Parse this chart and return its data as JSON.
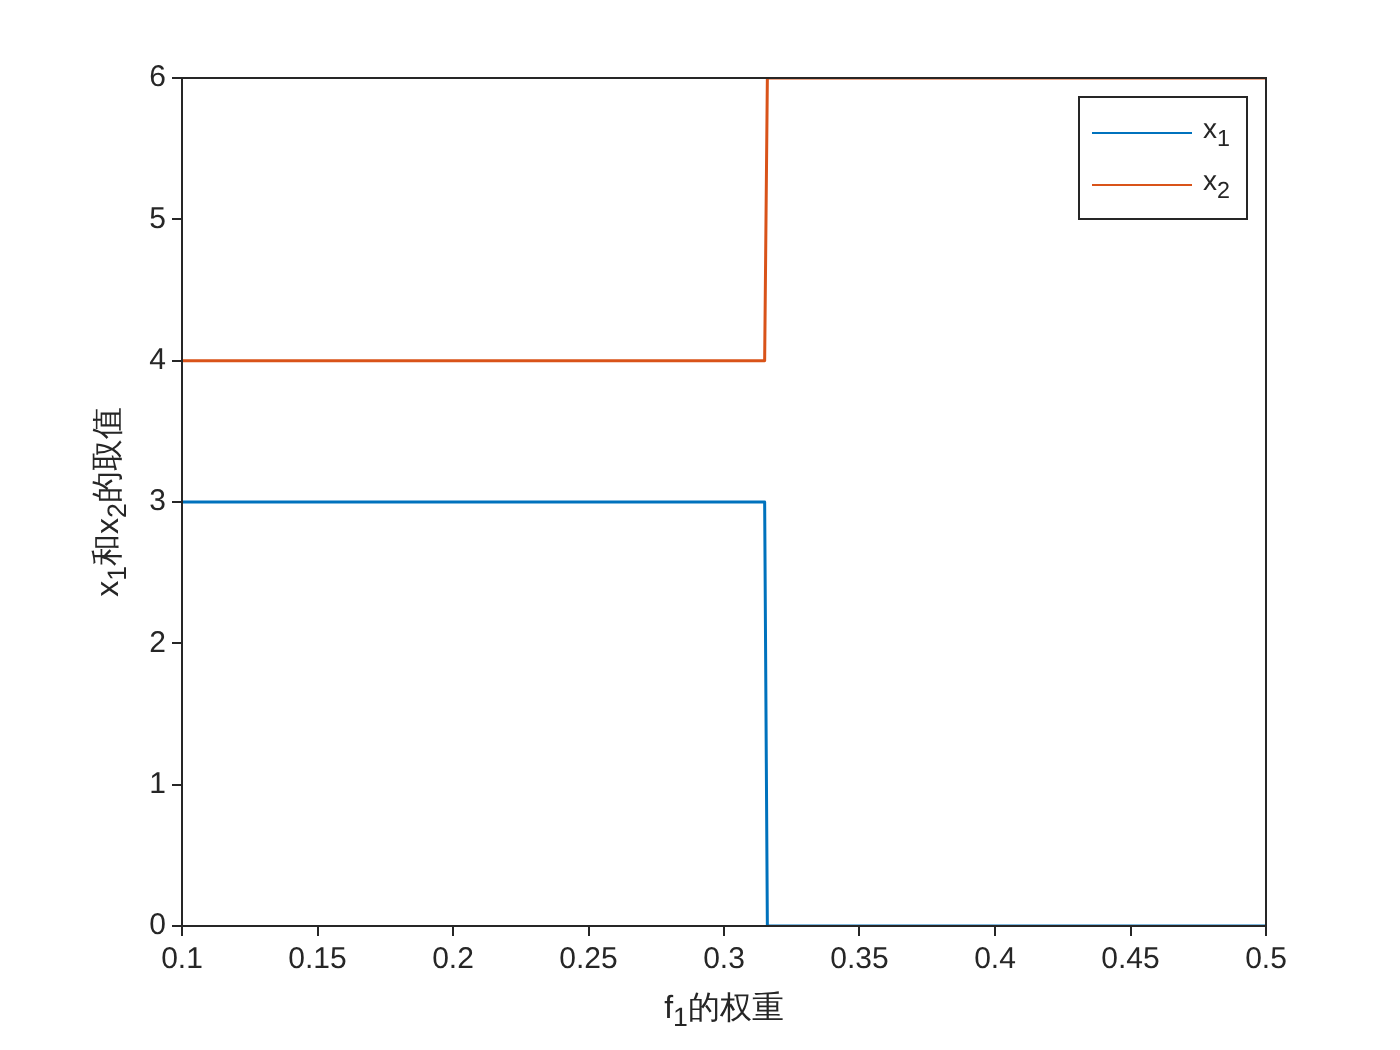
{
  "chart_data": {
    "type": "line",
    "xlabel": "f$_{1}$的权重",
    "ylabel": "x$_{1}$和x$_{2}$的取值",
    "xlim": [
      0.1,
      0.5
    ],
    "xticks": [
      0.1,
      0.15,
      0.2,
      0.25,
      0.3,
      0.35,
      0.4,
      0.45,
      0.5
    ],
    "ylim": [
      0,
      6
    ],
    "yticks": [
      0,
      1,
      2,
      3,
      4,
      5,
      6
    ],
    "grid": false,
    "legend": "top right",
    "marker": "none",
    "series": [
      {
        "name": "x$_{1}$",
        "color": "#0072bd",
        "x": [
          0.1,
          0.315,
          0.316,
          0.5
        ],
        "values": [
          3,
          3,
          0,
          0
        ]
      },
      {
        "name": "x$_{2}$",
        "color": "#d95319",
        "x": [
          0.1,
          0.315,
          0.316,
          0.5
        ],
        "values": [
          4,
          4,
          6,
          6
        ]
      }
    ]
  }
}
